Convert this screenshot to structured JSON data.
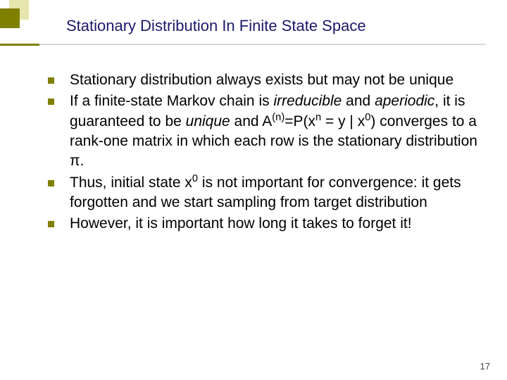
{
  "title": "Stationary Distribution In Finite State Space",
  "bullets": {
    "b0": "Stationary distribution always exists but may not be unique",
    "b1a": "If a finite-state Markov chain is ",
    "b1b": "irreducible",
    "b1c": " and ",
    "b1d": "aperiodic",
    "b1e": ", it is guaranteed to be ",
    "b1f": "unique",
    "b1g": " and A",
    "b1h": "(n)",
    "b1i": "=P(x",
    "b1j": "n",
    "b1k": " = y | x",
    "b1l": "0",
    "b1m": ") converges to a rank-one matrix in which each row is the stationary distribution π.",
    "b2a": "Thus, initial state x",
    "b2b": "0",
    "b2c": " is not important for convergence: it gets forgotten and we start sampling from target distribution",
    "b3": "However, it is important how long it takes to forget it!"
  },
  "page_number": "17",
  "colors": {
    "accent_dark": "#808000",
    "accent_light": "#e0e0a0",
    "title_color": "#1a1a6a",
    "underline_light": "#d8d8d8"
  }
}
